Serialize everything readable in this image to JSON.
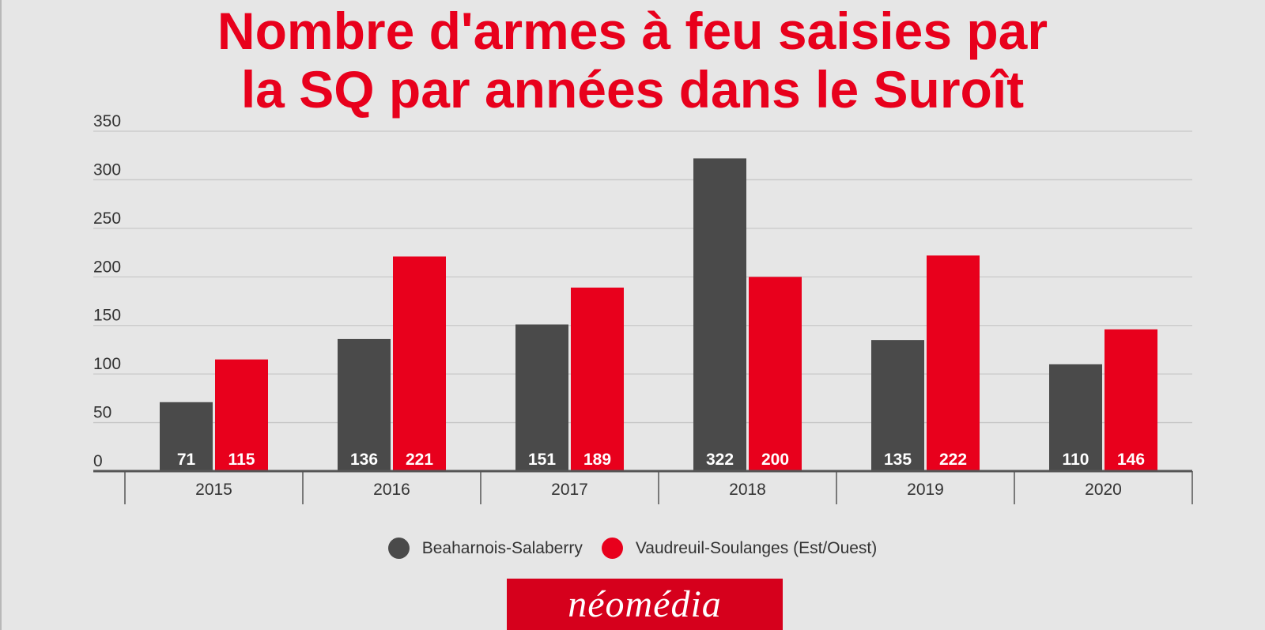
{
  "title": {
    "line1": "Nombre d'armes à feu saisies par",
    "line2": "la SQ par années dans le Suroît"
  },
  "chart_data": {
    "type": "bar",
    "categories": [
      "2015",
      "2016",
      "2017",
      "2018",
      "2019",
      "2020"
    ],
    "series": [
      {
        "name": "Beaharnois-Salaberry",
        "values": [
          71,
          136,
          151,
          322,
          135,
          110
        ],
        "color": "#4a4a4a"
      },
      {
        "name": "Vaudreuil-Soulanges (Est/Ouest)",
        "values": [
          115,
          221,
          189,
          200,
          222,
          146
        ],
        "color": "#e8001c"
      }
    ],
    "ylim": [
      0,
      350
    ],
    "yticks": [
      0,
      50,
      100,
      150,
      200,
      250,
      300,
      350
    ],
    "grid": true,
    "legend_position": "bottom"
  },
  "logo": {
    "text": "néomédia"
  },
  "colors": {
    "title": "#e8001c",
    "background": "#e6e6e6",
    "gridline": "#c8c8c8",
    "axis": "#555555",
    "tick_label": "#333333"
  }
}
